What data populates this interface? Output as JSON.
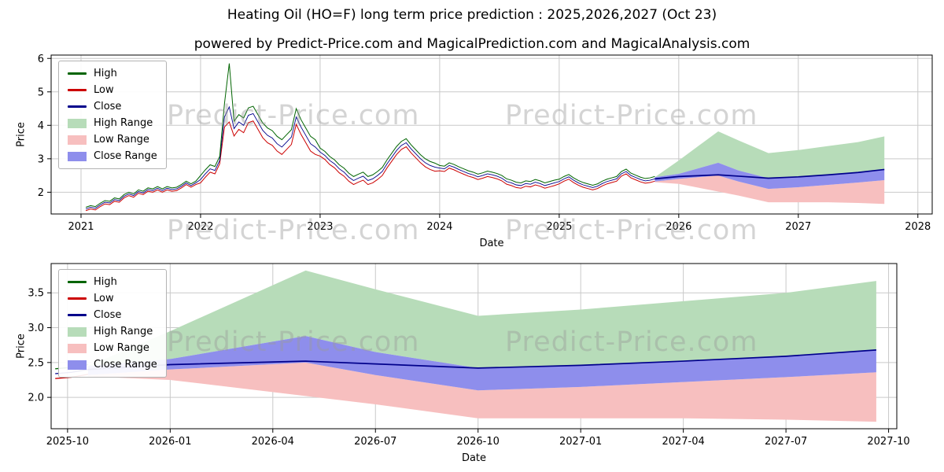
{
  "page": {
    "title": "Heating Oil (HO=F) long term price prediction : 2025,2026,2027 (Oct 23)",
    "subtitle": "powered by Predict-Price.com and MagicalPrediction.com and MagicalAnalysis.com",
    "watermark": "Predict-Price.com",
    "background": "#ffffff"
  },
  "colors": {
    "high_line": "#006400",
    "low_line": "#cc0000",
    "close_line": "#00008b",
    "high_range_fill": "#b7dcb9",
    "low_range_fill": "#f7bfbf",
    "close_range_fill": "#8e8eec",
    "grid": "#c9c9c9",
    "axis": "#000000",
    "watermark_color": "#9a9a9a"
  },
  "legend": {
    "items": [
      {
        "label": "High",
        "type": "line",
        "color": "#006400"
      },
      {
        "label": "Low",
        "type": "line",
        "color": "#cc0000"
      },
      {
        "label": "Close",
        "type": "line",
        "color": "#00008b"
      },
      {
        "label": "High Range",
        "type": "patch",
        "color": "#b7dcb9"
      },
      {
        "label": "Low Range",
        "type": "patch",
        "color": "#f7bfbf"
      },
      {
        "label": "Close Range",
        "type": "patch",
        "color": "#8e8eec"
      }
    ]
  },
  "chart_data": [
    {
      "type": "line",
      "title": "Historical prices 2021-2025 with prediction ranges to 2028",
      "xlabel": "Date",
      "ylabel": "Price",
      "xlim": [
        2020.75,
        2028.12
      ],
      "ylim": [
        1.35,
        6.1
      ],
      "grid": true,
      "legend_position": "upper left",
      "xticks": [
        {
          "v": 2021,
          "label": "2021"
        },
        {
          "v": 2022,
          "label": "2022"
        },
        {
          "v": 2023,
          "label": "2023"
        },
        {
          "v": 2024,
          "label": "2024"
        },
        {
          "v": 2025,
          "label": "2025"
        },
        {
          "v": 2026,
          "label": "2026"
        },
        {
          "v": 2027,
          "label": "2027"
        },
        {
          "v": 2028,
          "label": "2028"
        }
      ],
      "yticks": [
        {
          "v": 2,
          "label": "2"
        },
        {
          "v": 3,
          "label": "3"
        },
        {
          "v": 4,
          "label": "4"
        },
        {
          "v": 5,
          "label": "5"
        },
        {
          "v": 6,
          "label": "6"
        }
      ],
      "history": {
        "x0": 2021.04,
        "dx": 0.04,
        "high": [
          1.55,
          1.6,
          1.57,
          1.67,
          1.75,
          1.73,
          1.83,
          1.8,
          1.93,
          2.0,
          1.95,
          2.07,
          2.03,
          2.13,
          2.1,
          2.17,
          2.1,
          2.17,
          2.13,
          2.15,
          2.23,
          2.33,
          2.25,
          2.33,
          2.5,
          2.67,
          2.82,
          2.77,
          3.07,
          4.65,
          5.85,
          4.12,
          4.32,
          4.22,
          4.52,
          4.57,
          4.32,
          4.07,
          3.92,
          3.84,
          3.67,
          3.57,
          3.72,
          3.87,
          4.5,
          4.17,
          3.92,
          3.67,
          3.57,
          3.32,
          3.22,
          3.07,
          2.97,
          2.82,
          2.72,
          2.57,
          2.47,
          2.54,
          2.6,
          2.47,
          2.52,
          2.62,
          2.74,
          2.97,
          3.17,
          3.37,
          3.52,
          3.6,
          3.42,
          3.27,
          3.12,
          3.0,
          2.92,
          2.87,
          2.8,
          2.78,
          2.88,
          2.83,
          2.76,
          2.7,
          2.64,
          2.6,
          2.54,
          2.58,
          2.63,
          2.6,
          2.56,
          2.5,
          2.4,
          2.36,
          2.3,
          2.28,
          2.34,
          2.32,
          2.38,
          2.34,
          2.28,
          2.32,
          2.36,
          2.39,
          2.47,
          2.53,
          2.43,
          2.35,
          2.29,
          2.25,
          2.21,
          2.25,
          2.33,
          2.39,
          2.43,
          2.47,
          2.62,
          2.69,
          2.57,
          2.51,
          2.45,
          2.41,
          2.43,
          2.47
        ],
        "low": [
          1.45,
          1.5,
          1.47,
          1.57,
          1.65,
          1.63,
          1.73,
          1.7,
          1.83,
          1.9,
          1.85,
          1.97,
          1.93,
          2.03,
          2.0,
          2.07,
          2.0,
          2.07,
          2.03,
          2.05,
          2.13,
          2.23,
          2.15,
          2.23,
          2.28,
          2.45,
          2.6,
          2.55,
          2.85,
          3.95,
          4.1,
          3.68,
          3.88,
          3.78,
          4.08,
          4.13,
          3.88,
          3.63,
          3.48,
          3.4,
          3.23,
          3.13,
          3.28,
          3.43,
          4.03,
          3.73,
          3.48,
          3.23,
          3.13,
          3.08,
          2.98,
          2.83,
          2.73,
          2.58,
          2.48,
          2.33,
          2.23,
          2.3,
          2.36,
          2.23,
          2.28,
          2.38,
          2.5,
          2.73,
          2.93,
          3.13,
          3.28,
          3.36,
          3.18,
          3.03,
          2.88,
          2.76,
          2.68,
          2.63,
          2.64,
          2.62,
          2.72,
          2.67,
          2.6,
          2.54,
          2.48,
          2.44,
          2.38,
          2.42,
          2.47,
          2.44,
          2.4,
          2.34,
          2.24,
          2.2,
          2.14,
          2.12,
          2.18,
          2.16,
          2.22,
          2.18,
          2.12,
          2.16,
          2.2,
          2.25,
          2.33,
          2.39,
          2.29,
          2.21,
          2.15,
          2.11,
          2.07,
          2.11,
          2.19,
          2.25,
          2.29,
          2.33,
          2.48,
          2.55,
          2.43,
          2.37,
          2.31,
          2.27,
          2.29,
          2.33
        ],
        "close": [
          1.5,
          1.55,
          1.52,
          1.62,
          1.7,
          1.68,
          1.78,
          1.75,
          1.88,
          1.95,
          1.9,
          2.02,
          1.98,
          2.08,
          2.05,
          2.12,
          2.05,
          2.12,
          2.08,
          2.1,
          2.18,
          2.28,
          2.2,
          2.28,
          2.38,
          2.55,
          2.7,
          2.65,
          2.95,
          4.25,
          4.55,
          3.9,
          4.1,
          4.0,
          4.3,
          4.35,
          4.1,
          3.85,
          3.7,
          3.62,
          3.45,
          3.35,
          3.5,
          3.65,
          4.25,
          3.95,
          3.7,
          3.45,
          3.35,
          3.2,
          3.1,
          2.95,
          2.85,
          2.7,
          2.6,
          2.45,
          2.35,
          2.42,
          2.48,
          2.35,
          2.4,
          2.5,
          2.62,
          2.85,
          3.05,
          3.25,
          3.4,
          3.48,
          3.3,
          3.15,
          3.0,
          2.88,
          2.8,
          2.75,
          2.72,
          2.7,
          2.8,
          2.75,
          2.68,
          2.62,
          2.56,
          2.52,
          2.46,
          2.5,
          2.55,
          2.52,
          2.48,
          2.42,
          2.32,
          2.28,
          2.22,
          2.2,
          2.26,
          2.24,
          2.3,
          2.26,
          2.2,
          2.24,
          2.28,
          2.32,
          2.4,
          2.46,
          2.36,
          2.28,
          2.22,
          2.18,
          2.14,
          2.18,
          2.26,
          2.32,
          2.36,
          2.4,
          2.55,
          2.62,
          2.5,
          2.44,
          2.38,
          2.34,
          2.36,
          2.4
        ]
      },
      "prediction": {
        "x": [
          2025.8,
          2026.0,
          2026.33,
          2026.5,
          2026.75,
          2027.0,
          2027.25,
          2027.5,
          2027.72
        ],
        "high_range_top": [
          2.45,
          2.95,
          3.82,
          3.55,
          3.17,
          3.26,
          3.38,
          3.5,
          3.67
        ],
        "close_range_top": [
          2.45,
          2.55,
          2.88,
          2.65,
          2.42,
          2.46,
          2.52,
          2.6,
          2.68
        ],
        "close": [
          2.4,
          2.47,
          2.52,
          2.48,
          2.42,
          2.46,
          2.52,
          2.59,
          2.68
        ],
        "close_range_bottom": [
          2.32,
          2.4,
          2.5,
          2.32,
          2.1,
          2.15,
          2.22,
          2.29,
          2.36
        ],
        "low_range_bottom": [
          2.3,
          2.25,
          2.02,
          1.9,
          1.7,
          1.7,
          1.7,
          1.68,
          1.65
        ]
      }
    },
    {
      "type": "area",
      "title": "Prediction detail 2025-10 to 2027-10",
      "xlabel": "Date",
      "ylabel": "Price",
      "xlim": [
        2025.71,
        2027.77
      ],
      "ylim": [
        1.55,
        3.92
      ],
      "grid": true,
      "legend_position": "upper left",
      "xticks": [
        {
          "v": 2025.75,
          "label": "2025-10"
        },
        {
          "v": 2026.0,
          "label": "2026-01"
        },
        {
          "v": 2026.25,
          "label": "2026-04"
        },
        {
          "v": 2026.5,
          "label": "2026-07"
        },
        {
          "v": 2026.75,
          "label": "2026-10"
        },
        {
          "v": 2027.0,
          "label": "2027-01"
        },
        {
          "v": 2027.25,
          "label": "2027-04"
        },
        {
          "v": 2027.5,
          "label": "2027-07"
        },
        {
          "v": 2027.75,
          "label": "2027-10"
        }
      ],
      "yticks": [
        {
          "v": 2.0,
          "label": "2.0"
        },
        {
          "v": 2.5,
          "label": "2.5"
        },
        {
          "v": 3.0,
          "label": "3.0"
        },
        {
          "v": 3.5,
          "label": "3.5"
        }
      ],
      "history_tail": {
        "x": [
          2025.72,
          2025.76,
          2025.8
        ],
        "high": [
          2.41,
          2.43,
          2.47
        ],
        "low": [
          2.27,
          2.29,
          2.33
        ],
        "close": [
          2.34,
          2.36,
          2.4
        ]
      },
      "prediction": {
        "x": [
          2025.8,
          2026.0,
          2026.33,
          2026.5,
          2026.75,
          2027.0,
          2027.25,
          2027.5,
          2027.72
        ],
        "high_range_top": [
          2.45,
          2.95,
          3.82,
          3.55,
          3.17,
          3.26,
          3.38,
          3.5,
          3.67
        ],
        "close_range_top": [
          2.45,
          2.55,
          2.88,
          2.65,
          2.42,
          2.46,
          2.52,
          2.6,
          2.68
        ],
        "close": [
          2.4,
          2.47,
          2.52,
          2.48,
          2.42,
          2.46,
          2.52,
          2.59,
          2.68
        ],
        "close_range_bottom": [
          2.32,
          2.4,
          2.5,
          2.32,
          2.1,
          2.15,
          2.22,
          2.29,
          2.36
        ],
        "low_range_bottom": [
          2.3,
          2.25,
          2.02,
          1.9,
          1.7,
          1.7,
          1.7,
          1.68,
          1.65
        ]
      }
    }
  ]
}
